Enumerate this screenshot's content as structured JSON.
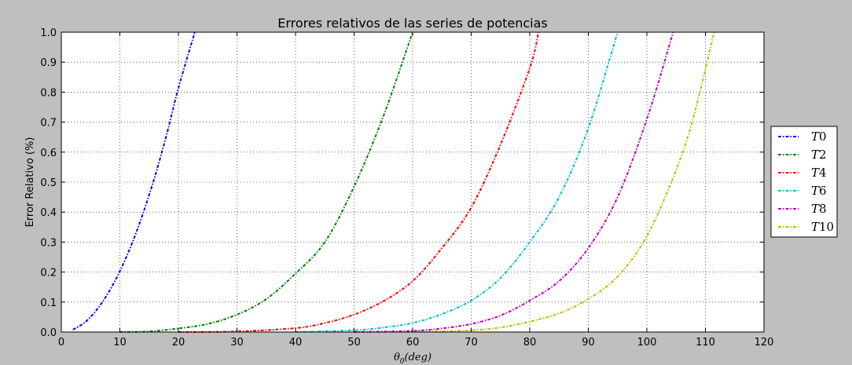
{
  "chart_data": {
    "type": "line",
    "title": "Errores relativos de las series de potencias",
    "xlabel_main": "θ",
    "xlabel_sub": "0",
    "xlabel_rest": "(deg)",
    "ylabel": "Error Relativo (%)",
    "xlim": [
      0,
      120
    ],
    "ylim": [
      0,
      1.0
    ],
    "xticks": [
      "0",
      "10",
      "20",
      "30",
      "40",
      "50",
      "60",
      "70",
      "80",
      "90",
      "100",
      "110",
      "120"
    ],
    "yticks": [
      "0.0",
      "0.1",
      "0.2",
      "0.3",
      "0.4",
      "0.5",
      "0.6",
      "0.7",
      "0.8",
      "0.9",
      "1.0"
    ],
    "grid": true,
    "legend_position": "right",
    "series": [
      {
        "name": "T0",
        "label_main": "T",
        "label_num": "0",
        "color": "#0000ff",
        "x": [
          2,
          4,
          6,
          8,
          10,
          12,
          14,
          16,
          18,
          20,
          22.8
        ],
        "y": [
          0.008,
          0.032,
          0.073,
          0.13,
          0.203,
          0.292,
          0.398,
          0.52,
          0.659,
          0.814,
          1.0
        ]
      },
      {
        "name": "T2",
        "label_main": "T",
        "label_num": "2",
        "color": "#008000",
        "x": [
          10,
          15,
          20,
          25,
          30,
          35,
          40,
          45,
          50,
          55,
          60
        ],
        "y": [
          0.0002,
          0.002,
          0.012,
          0.027,
          0.058,
          0.11,
          0.195,
          0.3,
          0.485,
          0.72,
          1.0
        ]
      },
      {
        "name": "T4",
        "label_main": "T",
        "label_num": "4",
        "color": "#ff0000",
        "x": [
          20,
          30,
          40,
          45,
          50,
          55,
          60,
          65,
          70,
          75,
          80,
          81.5
        ],
        "y": [
          0.0,
          0.002,
          0.013,
          0.03,
          0.058,
          0.103,
          0.17,
          0.28,
          0.415,
          0.625,
          0.88,
          1.0
        ]
      },
      {
        "name": "T6",
        "label_main": "T",
        "label_num": "6",
        "color": "#00bfbf",
        "x": [
          40,
          50,
          55,
          60,
          65,
          70,
          75,
          80,
          85,
          90,
          95
        ],
        "y": [
          0.0,
          0.006,
          0.015,
          0.03,
          0.06,
          0.105,
          0.18,
          0.3,
          0.45,
          0.68,
          1.0
        ]
      },
      {
        "name": "T8",
        "label_main": "T",
        "label_num": "8",
        "color": "#bf00bf",
        "x": [
          50,
          60,
          65,
          70,
          75,
          80,
          85,
          90,
          95,
          100,
          104.5
        ],
        "y": [
          0.0,
          0.004,
          0.012,
          0.027,
          0.055,
          0.105,
          0.17,
          0.28,
          0.45,
          0.71,
          1.0
        ]
      },
      {
        "name": "T10",
        "label_main": "T",
        "label_num": "10",
        "color": "#bfbf00",
        "x": [
          60,
          70,
          75,
          80,
          85,
          90,
          95,
          100,
          105,
          108,
          111.5
        ],
        "y": [
          0.0,
          0.006,
          0.015,
          0.035,
          0.062,
          0.11,
          0.185,
          0.32,
          0.54,
          0.72,
          1.0
        ]
      }
    ]
  }
}
